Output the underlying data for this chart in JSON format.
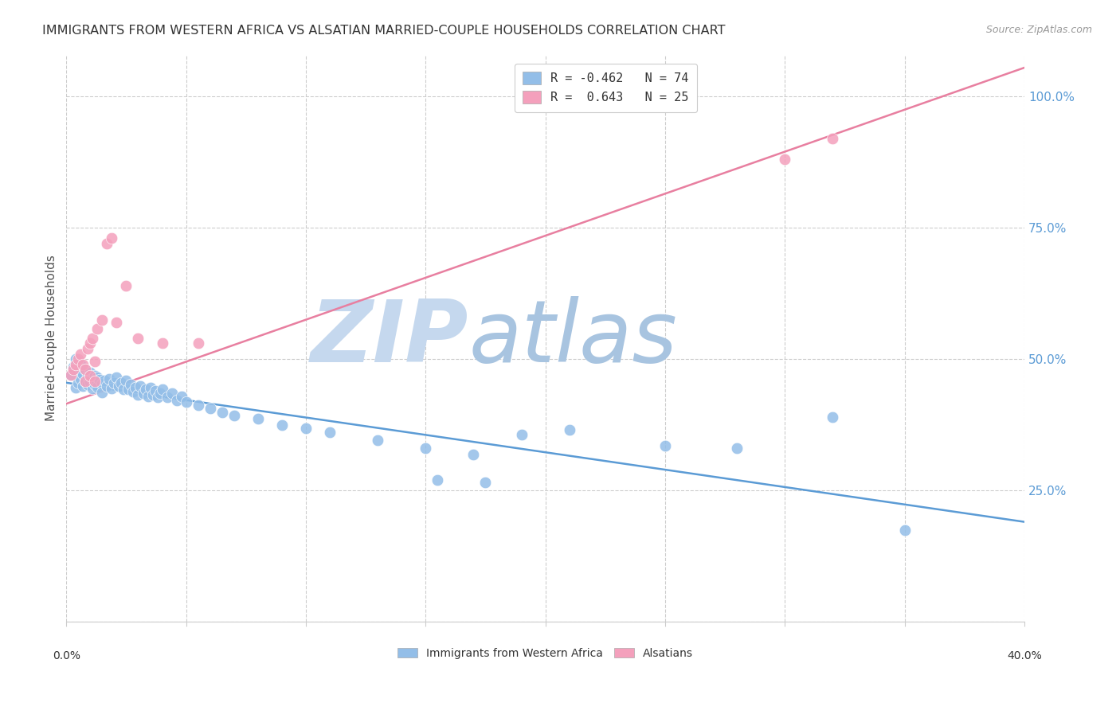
{
  "title": "IMMIGRANTS FROM WESTERN AFRICA VS ALSATIAN MARRIED-COUPLE HOUSEHOLDS CORRELATION CHART",
  "source": "Source: ZipAtlas.com",
  "ylabel_label": "Married-couple Households",
  "ytick_vals": [
    0.0,
    0.25,
    0.5,
    0.75,
    1.0
  ],
  "ytick_labels": [
    "0.0%",
    "25.0%",
    "50.0%",
    "75.0%",
    "100.0%"
  ],
  "xtick_vals": [
    0.0,
    0.05,
    0.1,
    0.15,
    0.2,
    0.25,
    0.3,
    0.35,
    0.4
  ],
  "xlim": [
    0.0,
    0.4
  ],
  "ylim": [
    0.0,
    1.08
  ],
  "legend_r1_text": "R = -0.462",
  "legend_r1_n": "N = 74",
  "legend_r2_text": "R =  0.643",
  "legend_r2_n": "N = 25",
  "blue_color": "#93BEE8",
  "pink_color": "#F4A0BC",
  "blue_line_color": "#5B9BD5",
  "pink_line_color": "#E87FA0",
  "watermark_zip": "ZIP",
  "watermark_atlas": "atlas",
  "watermark_color_zip": "#C5D8EE",
  "watermark_color_atlas": "#A8C4E0",
  "blue_scatter_x": [
    0.002,
    0.003,
    0.004,
    0.004,
    0.005,
    0.005,
    0.006,
    0.006,
    0.007,
    0.007,
    0.008,
    0.008,
    0.009,
    0.009,
    0.01,
    0.01,
    0.011,
    0.011,
    0.012,
    0.012,
    0.013,
    0.013,
    0.014,
    0.015,
    0.015,
    0.016,
    0.017,
    0.018,
    0.019,
    0.02,
    0.021,
    0.022,
    0.023,
    0.024,
    0.025,
    0.026,
    0.027,
    0.028,
    0.029,
    0.03,
    0.031,
    0.032,
    0.033,
    0.034,
    0.035,
    0.036,
    0.037,
    0.038,
    0.039,
    0.04,
    0.042,
    0.044,
    0.046,
    0.048,
    0.05,
    0.055,
    0.06,
    0.065,
    0.07,
    0.08,
    0.09,
    0.1,
    0.11,
    0.13,
    0.15,
    0.17,
    0.19,
    0.21,
    0.25,
    0.28,
    0.155,
    0.175,
    0.32,
    0.35
  ],
  "blue_scatter_y": [
    0.47,
    0.485,
    0.5,
    0.445,
    0.478,
    0.455,
    0.49,
    0.462,
    0.471,
    0.448,
    0.48,
    0.458,
    0.469,
    0.452,
    0.474,
    0.456,
    0.463,
    0.444,
    0.469,
    0.451,
    0.465,
    0.447,
    0.461,
    0.453,
    0.436,
    0.46,
    0.448,
    0.462,
    0.444,
    0.455,
    0.465,
    0.448,
    0.455,
    0.442,
    0.46,
    0.443,
    0.451,
    0.438,
    0.445,
    0.432,
    0.448,
    0.435,
    0.442,
    0.429,
    0.445,
    0.432,
    0.44,
    0.427,
    0.435,
    0.442,
    0.428,
    0.435,
    0.422,
    0.429,
    0.418,
    0.412,
    0.406,
    0.399,
    0.392,
    0.386,
    0.375,
    0.368,
    0.36,
    0.345,
    0.33,
    0.318,
    0.356,
    0.365,
    0.335,
    0.33,
    0.27,
    0.265,
    0.39,
    0.175
  ],
  "pink_scatter_x": [
    0.002,
    0.003,
    0.004,
    0.005,
    0.006,
    0.007,
    0.008,
    0.009,
    0.01,
    0.011,
    0.012,
    0.013,
    0.015,
    0.017,
    0.019,
    0.021,
    0.03,
    0.04,
    0.3,
    0.32,
    0.008,
    0.01,
    0.012,
    0.025,
    0.055
  ],
  "pink_scatter_y": [
    0.47,
    0.48,
    0.49,
    0.5,
    0.51,
    0.49,
    0.48,
    0.52,
    0.53,
    0.54,
    0.495,
    0.558,
    0.574,
    0.72,
    0.73,
    0.57,
    0.54,
    0.53,
    0.88,
    0.92,
    0.458,
    0.468,
    0.458,
    0.64,
    0.53
  ],
  "blue_trend_x": [
    0.0,
    0.4
  ],
  "blue_trend_y": [
    0.455,
    0.19
  ],
  "pink_trend_x": [
    0.0,
    0.4
  ],
  "pink_trend_y": [
    0.415,
    1.055
  ]
}
